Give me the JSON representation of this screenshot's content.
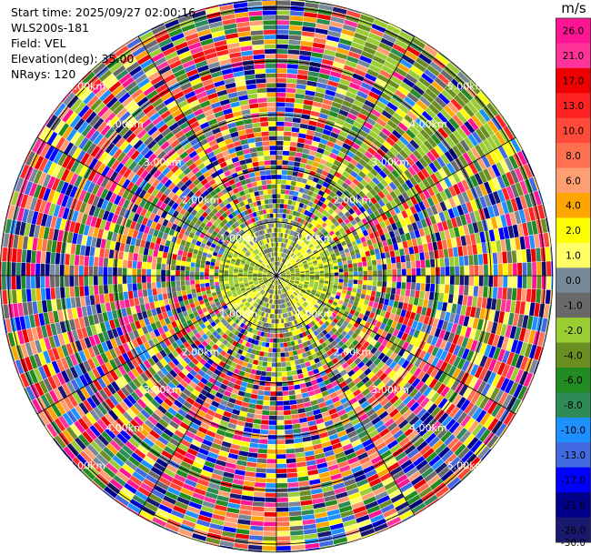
{
  "info": {
    "start_time": "Start time: 2025/09/27 02:00:16",
    "instrument": "WLS200s-181",
    "field": "Field: VEL",
    "elevation": "Elevation(deg): 35.00",
    "nrays": "NRays: 120"
  },
  "chart_data": {
    "type": "heatmap",
    "projection": "polar-ppi",
    "field": "VEL",
    "nrays": 120,
    "range_rings_km": [
      1.0,
      2.0,
      3.0,
      4.0,
      5.0
    ],
    "ring_labels": [
      "1.00km",
      "2.00km",
      "3.00km",
      "4.00km",
      "5.00km"
    ],
    "max_range_km": 5.4,
    "colorbar": {
      "unit": "m/s",
      "ticks": [
        "26.0",
        "21.0",
        "17.0",
        "13.0",
        "10.0",
        "8.0",
        "6.0",
        "4.0",
        "2.0",
        "1.0",
        "0.0",
        "-1.0",
        "-2.0",
        "-4.0",
        "-6.0",
        "-8.0",
        "-10.0",
        "-13.0",
        "-17.0",
        "-21.0",
        "-26.0",
        "-30.0"
      ],
      "colors": [
        "#ff1493",
        "#ff3399",
        "#ee0000",
        "#ff2222",
        "#ff4a3a",
        "#ff7050",
        "#ff9e70",
        "#ffa500",
        "#ffff00",
        "#ffff66",
        "#778899",
        "#696969",
        "#9acd32",
        "#6b8e23",
        "#228b22",
        "#2e8b57",
        "#1e90ff",
        "#4169e1",
        "#0000ff",
        "#00008b",
        "#191970"
      ]
    }
  }
}
